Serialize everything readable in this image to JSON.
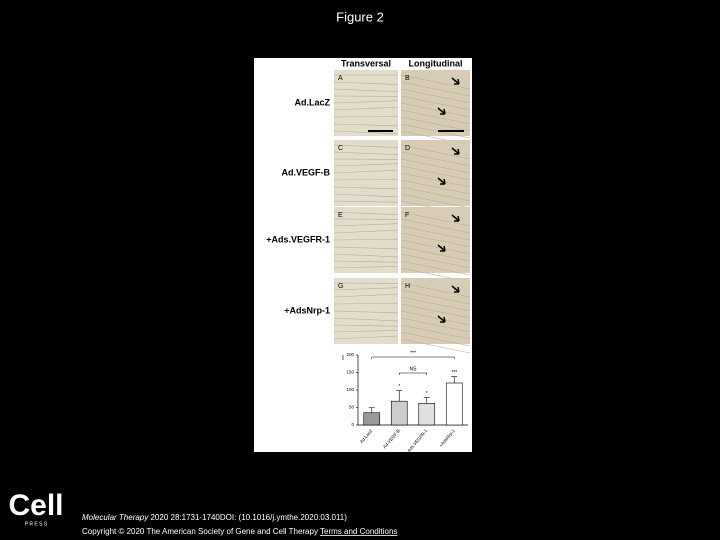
{
  "header": {
    "title": "Figure 2"
  },
  "figure": {
    "column_headers": [
      "Transversal",
      "Longitudinal"
    ],
    "row_labels": [
      "Ad.LacZ",
      "Ad.VEGF-B",
      "+Ads.VEGFR-1",
      "+AdsNrp-1"
    ],
    "panel_letters": [
      "A",
      "B",
      "C",
      "D",
      "E",
      "F",
      "G",
      "H"
    ],
    "chart": {
      "type": "bar",
      "panel_letter": "I",
      "categories": [
        "Ad.LacZ",
        "Ad.VEGF-B",
        "+Ads.VEGFR-1",
        "+AdsNrp-1"
      ],
      "values": [
        35,
        68,
        62,
        120
      ],
      "errors": [
        15,
        30,
        16,
        18
      ],
      "ylim": [
        0,
        200
      ],
      "yticks": [
        0,
        50,
        100,
        150,
        200
      ],
      "annotations": [
        "***",
        "NS",
        "*",
        "*",
        "***"
      ]
    }
  },
  "footer": {
    "logo": "Cell",
    "logo_sub": "P R E S S",
    "journal": "Molecular Therapy",
    "citation": " 2020 28:1731-1740DOI: (10.1016/j.ymthe.2020.03.011)",
    "copyright": "Copyright © 2020 The American Society of Gene and Cell Therapy ",
    "link": "Terms and Conditions"
  }
}
